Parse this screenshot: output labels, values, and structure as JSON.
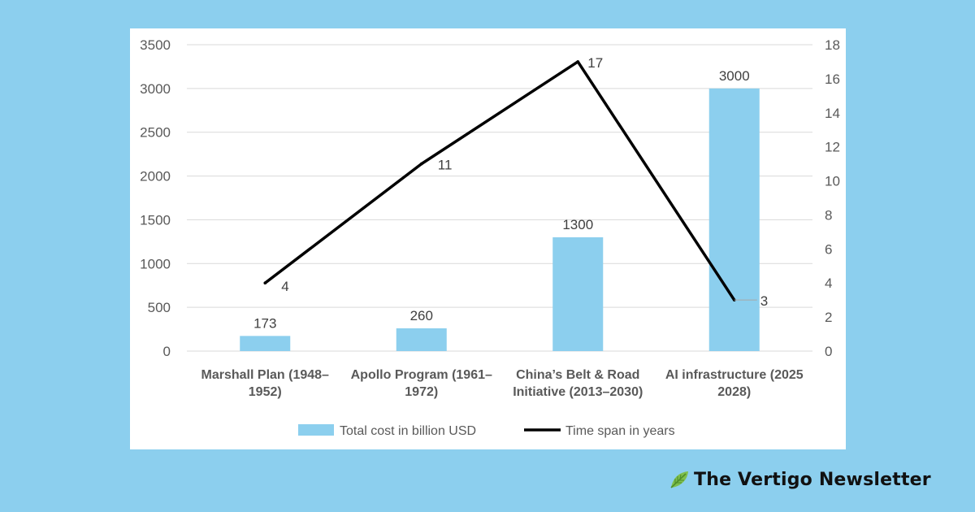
{
  "colors": {
    "background": "#8ccfee",
    "bar": "#8ccfee",
    "line": "#000000",
    "grid": "#d9d9d9"
  },
  "brand": {
    "name": "The Vertigo Newsletter",
    "icon": "leaf-icon"
  },
  "chart_data": {
    "type": "bar",
    "categories": [
      [
        "Marshall Plan (1948–",
        "1952)"
      ],
      [
        "Apollo Program (1961–",
        "1972)"
      ],
      [
        "China’s Belt & Road",
        "Initiative (2013–2030)"
      ],
      [
        "AI infrastructure (2025",
        "2028)"
      ]
    ],
    "series": [
      {
        "name": "Total cost in billion USD",
        "type": "bar",
        "axis": "left",
        "values": [
          173,
          260,
          1300,
          3000
        ],
        "labels": [
          "173",
          "260",
          "1300",
          "3000"
        ]
      },
      {
        "name": "Time span in years",
        "type": "line",
        "axis": "right",
        "values": [
          4,
          11,
          17,
          3
        ],
        "labels": [
          "4",
          "11",
          "17",
          "3"
        ]
      }
    ],
    "y_left": {
      "min": 0,
      "max": 3500,
      "ticks": [
        "0",
        "500",
        "1000",
        "1500",
        "2000",
        "2500",
        "3000",
        "3500"
      ]
    },
    "y_right": {
      "min": 0,
      "max": 18,
      "ticks": [
        "0",
        "2",
        "4",
        "6",
        "8",
        "10",
        "12",
        "14",
        "16",
        "18"
      ]
    },
    "grid": true,
    "legend_position": "bottom"
  }
}
